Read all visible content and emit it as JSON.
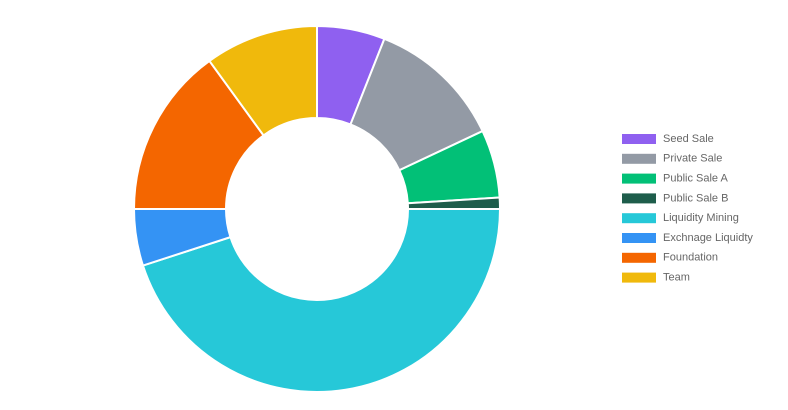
{
  "chart_data": {
    "type": "doughnut",
    "categories": [
      "Seed Sale",
      "Private Sale",
      "Public Sale A",
      "Public Sale B",
      "Liquidity Mining",
      "Exchnage Liquidty",
      "Foundation",
      "Team"
    ],
    "values": [
      6,
      12,
      6,
      1,
      45,
      5,
      15,
      10
    ],
    "colors": [
      "#8f60f0",
      "#939aa5",
      "#02c077",
      "#1e5d4b",
      "#26c8d8",
      "#3493f4",
      "#f46600",
      "#f0b90c"
    ],
    "legend": "right"
  }
}
